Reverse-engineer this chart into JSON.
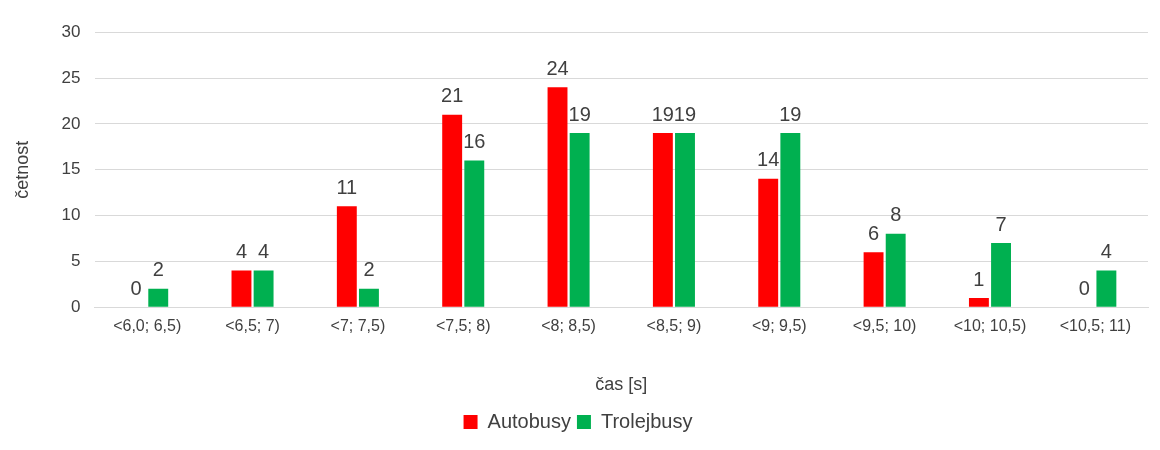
{
  "chart_data": {
    "type": "bar",
    "xlabel": "čas [s]",
    "ylabel": "četnost",
    "categories": [
      "<6,0; 6,5)",
      "<6,5; 7)",
      "<7; 7,5)",
      "<7,5; 8)",
      "<8; 8,5)",
      "<8,5; 9)",
      "<9; 9,5)",
      "<9,5; 10)",
      "<10; 10,5)",
      "<10,5; 11)"
    ],
    "series": [
      {
        "name": "Autobusy",
        "color": "#ff0000",
        "values": [
          0,
          4,
          11,
          21,
          24,
          19,
          14,
          6,
          1,
          0
        ]
      },
      {
        "name": "Trolejbusy",
        "color": "#00b050",
        "values": [
          2,
          4,
          2,
          16,
          19,
          19,
          19,
          8,
          7,
          4
        ]
      }
    ],
    "ylim": [
      0,
      30
    ],
    "yticks": [
      0,
      5,
      10,
      15,
      20,
      25,
      30
    ],
    "grid": "y",
    "legend": "bottom",
    "data_labels": true
  }
}
